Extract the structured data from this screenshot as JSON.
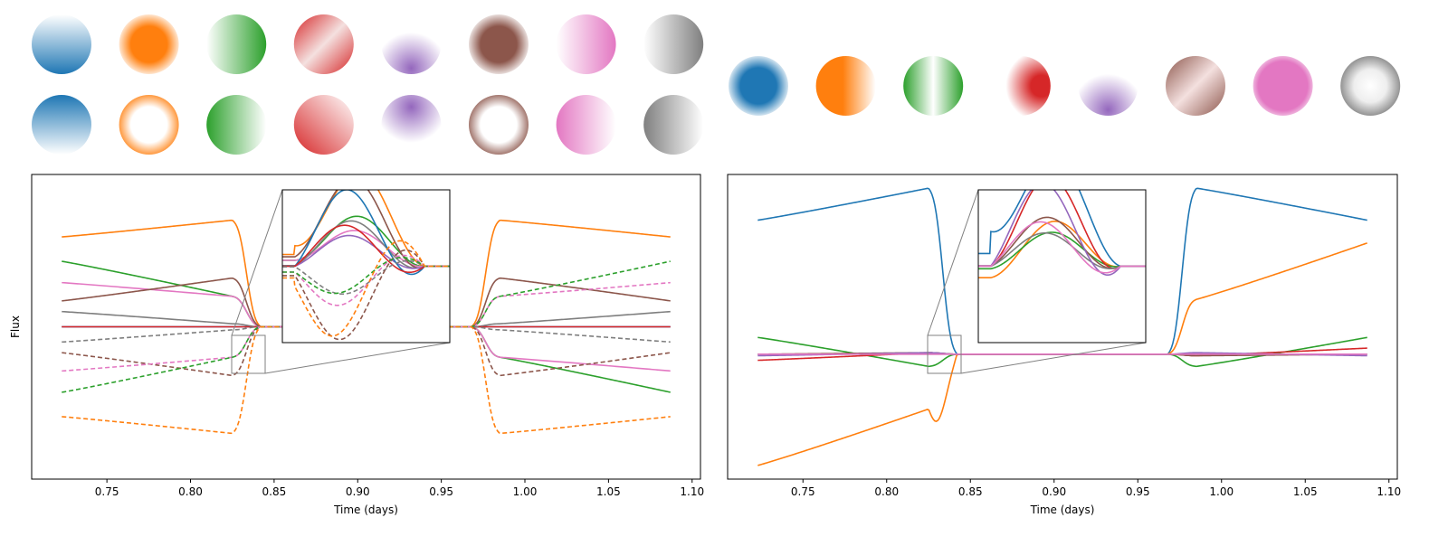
{
  "colors": {
    "blue": "#1f77b4",
    "orange": "#ff7f0e",
    "green": "#2ca02c",
    "red": "#d62728",
    "purple": "#9467bd",
    "brown": "#8c564b",
    "pink": "#e377c2",
    "gray": "#7f7f7f",
    "frame": "#000000",
    "inset_connector": "#808080"
  },
  "chart_data": [
    {
      "type": "line",
      "panel": "left",
      "xlabel": "Time (days)",
      "ylabel": "Flux",
      "xlim": [
        0.705,
        1.105
      ],
      "ylim": [
        -1.0,
        1.0
      ],
      "y_ticks_shown": false,
      "xticks": [
        "0.75",
        "0.80",
        "0.85",
        "0.90",
        "0.95",
        "1.00",
        "1.05",
        "1.10"
      ],
      "xtick_values": [
        0.75,
        0.8,
        0.85,
        0.9,
        0.95,
        1.0,
        1.05,
        1.1
      ],
      "grid": false,
      "eclipse_1": [
        0.825,
        0.842
      ],
      "eclipse_2": [
        0.968,
        0.985
      ],
      "series": [
        {
          "color": "orange",
          "style": "solid",
          "left_end": 0.59,
          "near_start": 0.7,
          "right_end": 0.59
        },
        {
          "color": "green",
          "style": "solid",
          "left_end": 0.43,
          "near_start": 0.2,
          "right_end": -0.43
        },
        {
          "color": "pink",
          "style": "solid",
          "left_end": 0.29,
          "near_start": 0.2,
          "right_end": -0.29
        },
        {
          "color": "brown",
          "style": "solid",
          "left_end": 0.17,
          "near_start": 0.32,
          "right_end": 0.17
        },
        {
          "color": "gray",
          "style": "solid",
          "left_end": 0.1,
          "near_start": 0.02,
          "right_end": 0.1
        },
        {
          "color": "purple",
          "style": "solid",
          "left_end": 0.0,
          "near_start": 0.0,
          "right_end": 0.0
        },
        {
          "color": "blue",
          "style": "solid",
          "left_end": 0.0,
          "near_start": 0.0,
          "right_end": 0.0
        },
        {
          "color": "red",
          "style": "solid",
          "left_end": 0.0,
          "near_start": 0.0,
          "right_end": 0.0
        },
        {
          "color": "gray",
          "style": "dashed",
          "left_end": -0.1,
          "near_start": -0.02,
          "right_end": -0.1
        },
        {
          "color": "brown",
          "style": "dashed",
          "left_end": -0.17,
          "near_start": -0.32,
          "right_end": -0.17
        },
        {
          "color": "pink",
          "style": "dashed",
          "left_end": -0.29,
          "near_start": -0.2,
          "right_end": 0.29
        },
        {
          "color": "green",
          "style": "dashed",
          "left_end": -0.43,
          "near_start": -0.2,
          "right_end": 0.43
        },
        {
          "color": "orange",
          "style": "dashed",
          "left_end": -0.59,
          "near_start": -0.7,
          "right_end": -0.59
        }
      ],
      "inset": {
        "xlim": [
          0.825,
          0.845
        ],
        "ylim": [
          -0.13,
          0.13
        ]
      }
    },
    {
      "type": "line",
      "panel": "right",
      "xlabel": "Time (days)",
      "ylabel": "",
      "xlim": [
        0.705,
        1.105
      ],
      "ylim": [
        -0.82,
        1.18
      ],
      "y_ticks_shown": false,
      "xticks": [
        "0.75",
        "0.80",
        "0.85",
        "0.90",
        "0.95",
        "1.00",
        "1.05",
        "1.10"
      ],
      "xtick_values": [
        0.75,
        0.8,
        0.85,
        0.9,
        0.95,
        1.0,
        1.05,
        1.1
      ],
      "grid": false,
      "eclipse_1": [
        0.825,
        0.842
      ],
      "eclipse_2": [
        0.968,
        0.985
      ],
      "series": [
        {
          "color": "blue",
          "style": "solid",
          "left_end": 0.88,
          "near_start": 1.09,
          "right_end": 0.88
        },
        {
          "color": "orange",
          "style": "solid",
          "left_end": -0.73,
          "near_start": -0.36,
          "right_end": 0.73
        },
        {
          "color": "green",
          "style": "solid",
          "left_end": 0.11,
          "near_start": -0.08,
          "right_end": 0.11
        },
        {
          "color": "red",
          "style": "solid",
          "left_end": -0.04,
          "near_start": 0.01,
          "right_end": 0.04
        },
        {
          "color": "brown",
          "style": "solid",
          "left_end": 0.0,
          "near_start": 0.01,
          "right_end": 0.0
        },
        {
          "color": "gray",
          "style": "solid",
          "left_end": 0.0,
          "near_start": 0.0,
          "right_end": 0.0
        },
        {
          "color": "purple",
          "style": "solid",
          "left_end": -0.01,
          "near_start": 0.01,
          "right_end": -0.01
        },
        {
          "color": "pink",
          "style": "solid",
          "left_end": 0.0,
          "near_start": 0.0,
          "right_end": 0.0
        }
      ],
      "inset": {
        "xlim": [
          0.825,
          0.845
        ],
        "ylim": [
          -0.12,
          0.12
        ]
      }
    }
  ],
  "spheres": {
    "left_top": [
      {
        "color": "blue",
        "shading": "linear-down"
      },
      {
        "color": "orange",
        "shading": "radial-full"
      },
      {
        "color": "green",
        "shading": "linear-right"
      },
      {
        "color": "red",
        "shading": "linear-diag"
      },
      {
        "color": "purple",
        "shading": "radial-bottom"
      },
      {
        "color": "brown",
        "shading": "radial-full"
      },
      {
        "color": "pink",
        "shading": "linear-right"
      },
      {
        "color": "gray",
        "shading": "linear-right"
      }
    ],
    "left_bottom": [
      {
        "color": "blue",
        "shading": "linear-up"
      },
      {
        "color": "orange",
        "shading": "radial-edge"
      },
      {
        "color": "green",
        "shading": "linear-left"
      },
      {
        "color": "red",
        "shading": "linear-diag-rev"
      },
      {
        "color": "purple",
        "shading": "radial-top"
      },
      {
        "color": "brown",
        "shading": "radial-edge"
      },
      {
        "color": "pink",
        "shading": "linear-left"
      },
      {
        "color": "gray",
        "shading": "linear-left"
      }
    ],
    "right": [
      {
        "color": "blue",
        "shading": "radial-full"
      },
      {
        "color": "orange",
        "shading": "linear-right-white"
      },
      {
        "color": "green",
        "shading": "stripe"
      },
      {
        "color": "red",
        "shading": "radial-right"
      },
      {
        "color": "purple",
        "shading": "radial-bottom"
      },
      {
        "color": "brown",
        "shading": "linear-diag"
      },
      {
        "color": "pink",
        "shading": "radial-full-solid"
      },
      {
        "color": "gray",
        "shading": "radial-edge-light"
      }
    ]
  }
}
